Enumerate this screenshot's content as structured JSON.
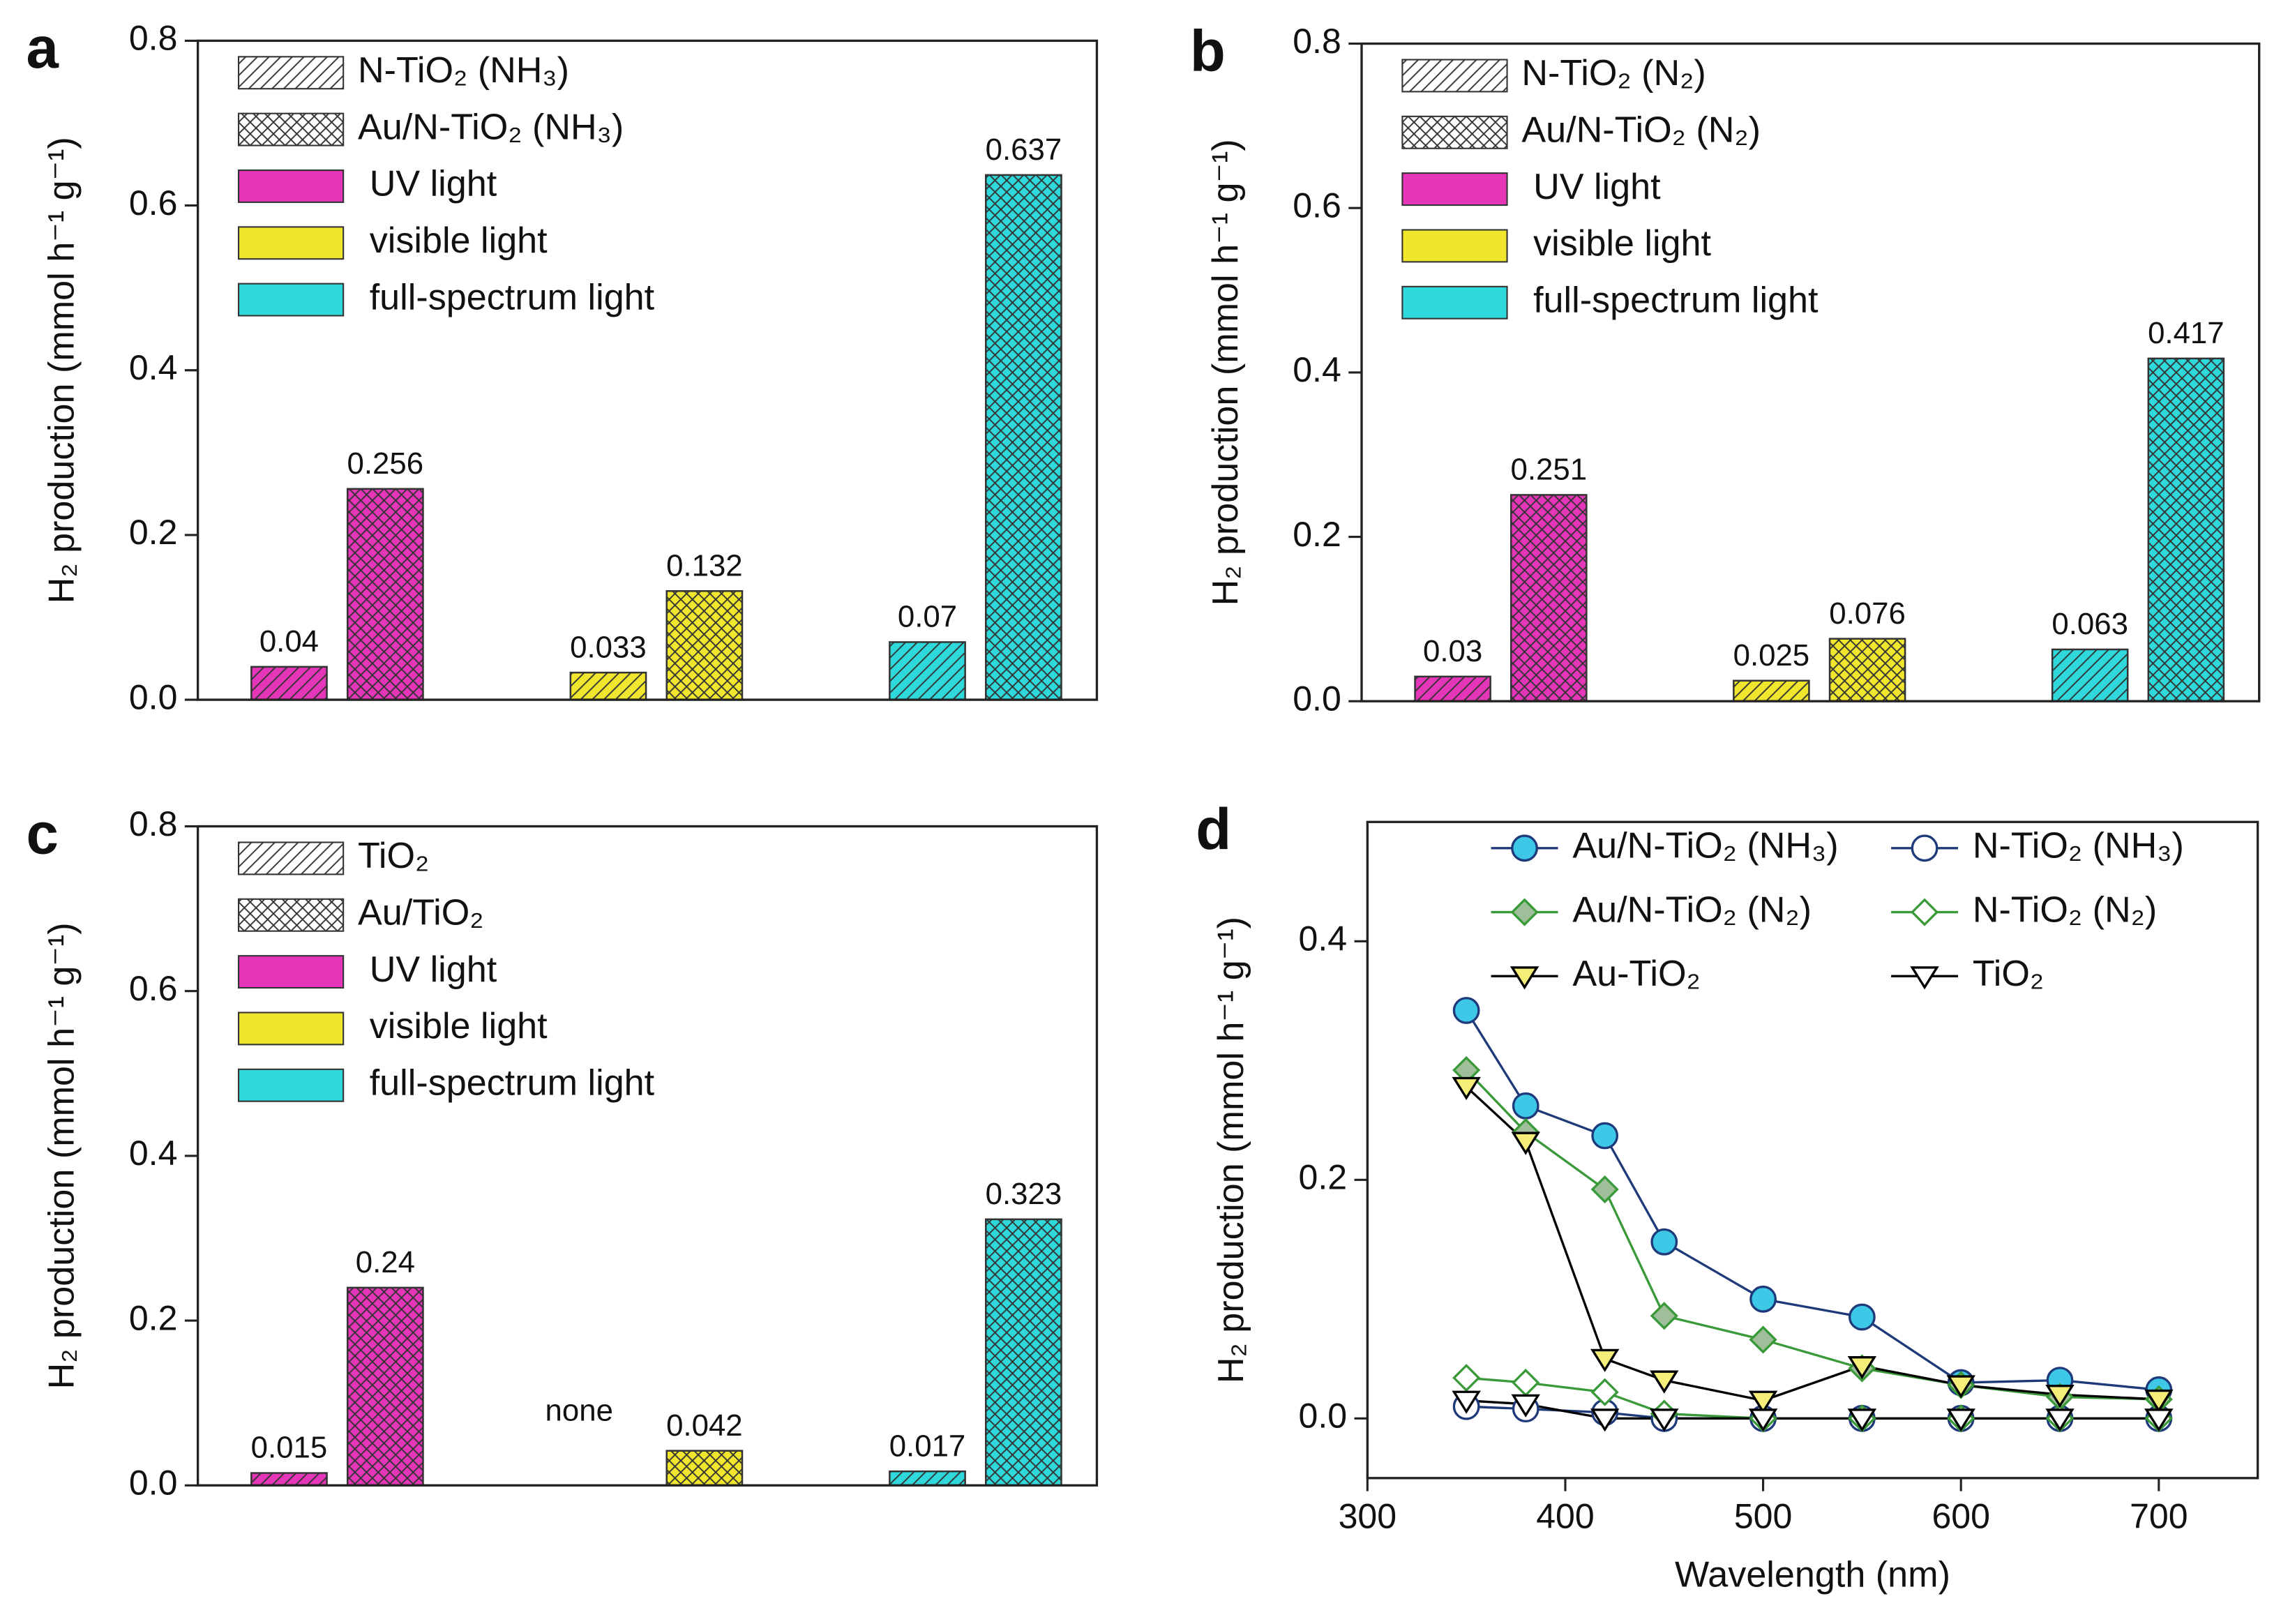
{
  "chart_data": [
    {
      "type": "bar",
      "panel_label": "a",
      "ylabel": "H₂ production (mmol h⁻¹ g⁻¹)",
      "ylim": [
        0,
        0.8
      ],
      "yticks": [
        {
          "value": 0,
          "label": "0.0"
        },
        0.2,
        0.4,
        0.6,
        0.8
      ],
      "categories": [
        "UV light",
        "visible light",
        "full-spectrum light"
      ],
      "category_colors": [
        "#e535b8",
        "#f0e62e",
        "#2fd8da"
      ],
      "series": [
        {
          "name": "N-TiO₂ (NH₃)",
          "pattern": "hatch",
          "values": [
            0.04,
            0.033,
            0.07
          ]
        },
        {
          "name": "Au/N-TiO₂ (NH₃)",
          "pattern": "crosshatch",
          "values": [
            0.256,
            0.132,
            0.637
          ]
        }
      ]
    },
    {
      "type": "bar",
      "panel_label": "b",
      "ylabel": "H₂ production (mmol h⁻¹ g⁻¹)",
      "ylim": [
        0,
        0.8
      ],
      "yticks": [
        {
          "value": 0,
          "label": "0.0"
        },
        0.2,
        0.4,
        0.6,
        0.8
      ],
      "categories": [
        "UV light",
        "visible light",
        "full-spectrum light"
      ],
      "category_colors": [
        "#e535b8",
        "#f0e62e",
        "#2fd8da"
      ],
      "series": [
        {
          "name": "N-TiO₂ (N₂)",
          "pattern": "hatch",
          "values": [
            0.03,
            0.025,
            0.063
          ]
        },
        {
          "name": "Au/N-TiO₂ (N₂)",
          "pattern": "crosshatch",
          "values": [
            0.251,
            0.076,
            0.417
          ]
        }
      ]
    },
    {
      "type": "bar",
      "panel_label": "c",
      "ylabel": "H₂ production (mmol h⁻¹ g⁻¹)",
      "ylim": [
        0,
        0.8
      ],
      "yticks": [
        {
          "value": 0,
          "label": "0.0"
        },
        0.2,
        0.4,
        0.6,
        0.8
      ],
      "categories": [
        "UV light",
        "visible light",
        "full-spectrum light"
      ],
      "category_colors": [
        "#e535b8",
        "#f0e62e",
        "#2fd8da"
      ],
      "series": [
        {
          "name": "TiO₂",
          "pattern": "hatch",
          "values": [
            0.015,
            null,
            0.017
          ],
          "value_labels": [
            "0.015",
            "none",
            "0.017"
          ]
        },
        {
          "name": "Au/TiO₂",
          "pattern": "crosshatch",
          "values": [
            0.24,
            0.042,
            0.323
          ]
        }
      ]
    },
    {
      "type": "line",
      "panel_label": "d",
      "ylabel": "H₂ production (mmol h⁻¹ g⁻¹)",
      "xlabel": "Wavelength (nm)",
      "xlim": [
        300,
        750
      ],
      "xticks": [
        300,
        400,
        500,
        600,
        700
      ],
      "ylim": [
        -0.05,
        0.5
      ],
      "yticks": [
        {
          "value": 0,
          "label": "0.0"
        },
        0.2,
        0.4
      ],
      "x": [
        350,
        380,
        420,
        450,
        500,
        550,
        600,
        650,
        700
      ],
      "series": [
        {
          "name": "Au/N-TiO₂ (NH₃)",
          "color": "#1f3a7a",
          "marker": "circle",
          "marker_fill": "#3cc8e6",
          "values": [
            0.342,
            0.262,
            0.237,
            0.148,
            0.1,
            0.085,
            0.03,
            0.032,
            0.024
          ]
        },
        {
          "name": "N-TiO₂ (NH₃)",
          "color": "#1f3a7a",
          "marker": "circle",
          "marker_fill": "#ffffff",
          "values": [
            0.01,
            0.008,
            0.005,
            0,
            0,
            0,
            0,
            0,
            0
          ]
        },
        {
          "name": "Au/N-TiO₂ (N₂)",
          "color": "#3a9a3a",
          "marker": "diamond",
          "marker_fill": "#9fbf9a",
          "values": [
            0.292,
            0.24,
            0.192,
            0.086,
            0.066,
            0.042,
            0.028,
            0.018,
            0.016
          ]
        },
        {
          "name": "N-TiO₂ (N₂)",
          "color": "#3a9a3a",
          "marker": "diamond",
          "marker_fill": "#ffffff",
          "values": [
            0.034,
            0.03,
            0.022,
            0.004,
            0,
            0,
            0,
            0,
            0
          ]
        },
        {
          "name": "Au-TiO₂",
          "color": "#000000",
          "marker": "triangle-down",
          "marker_fill": "#f5ef7a",
          "values": [
            0.278,
            0.232,
            0.05,
            0.032,
            0.015,
            0.044,
            0.028,
            0.02,
            0.016
          ]
        },
        {
          "name": "TiO₂",
          "color": "#000000",
          "marker": "triangle-down",
          "marker_fill": "#ffffff",
          "values": [
            0.015,
            0.012,
            0,
            0,
            0,
            0,
            0,
            0,
            0
          ]
        }
      ]
    }
  ]
}
